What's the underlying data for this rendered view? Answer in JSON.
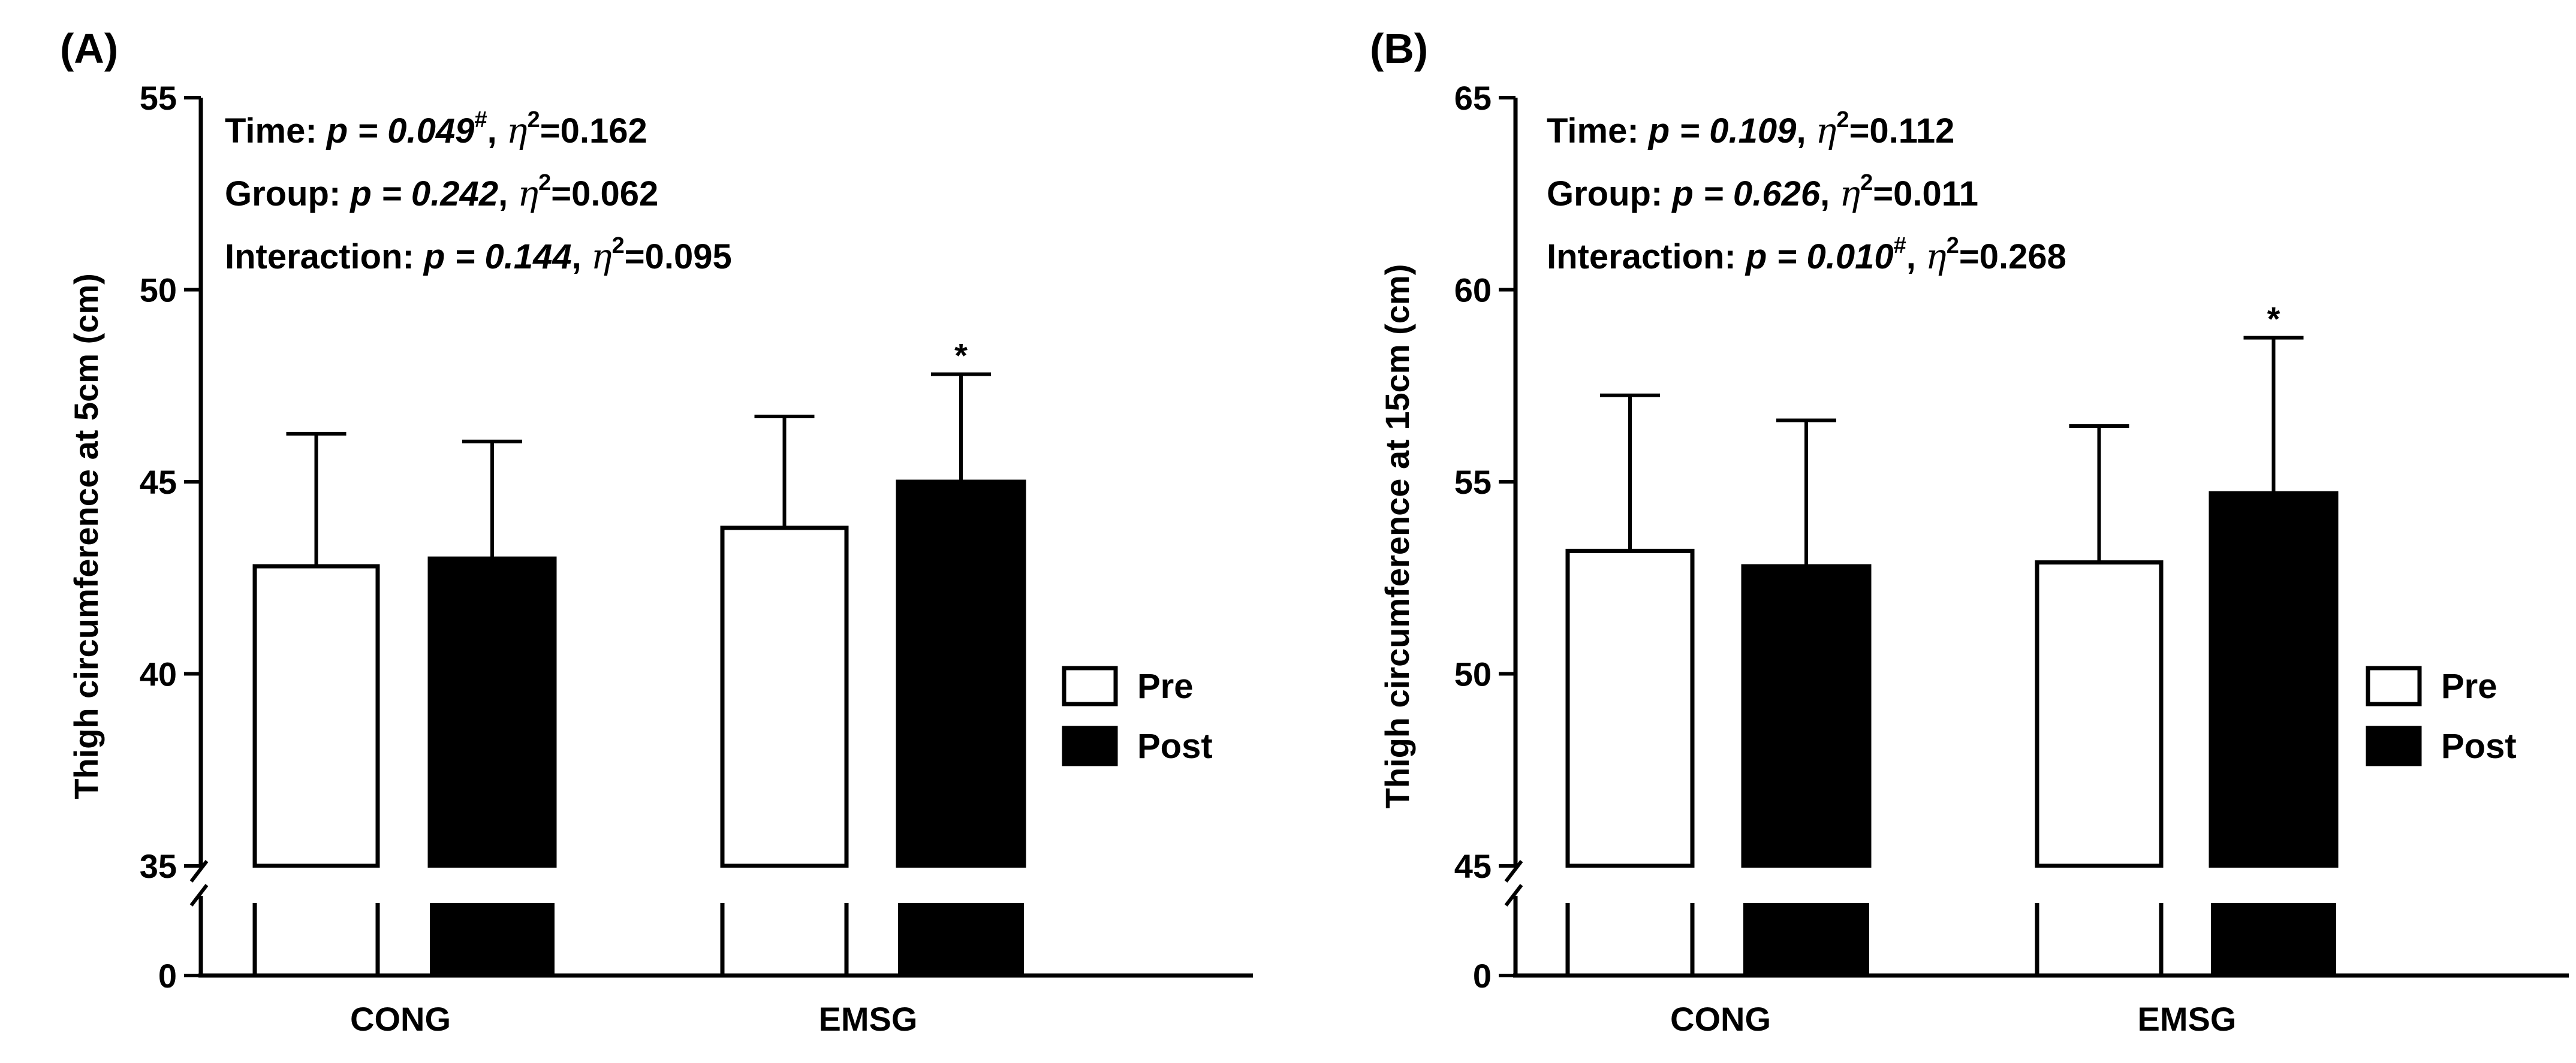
{
  "chart_data": [
    {
      "panel_label": "(A)",
      "type": "bar",
      "ylabel": "Thigh circumference at 5cm (cm)",
      "y_ticks": [
        0,
        35,
        40,
        45,
        50,
        55
      ],
      "ylim": [
        35,
        55
      ],
      "axis_break": "between 0 and 35",
      "categories": [
        "CONG",
        "EMSG"
      ],
      "series": [
        {
          "name": "Pre",
          "fill": "white",
          "values": [
            42.8,
            43.8
          ],
          "sd": [
            3.45,
            2.9
          ]
        },
        {
          "name": "Post",
          "fill": "black",
          "values": [
            43.0,
            45.0
          ],
          "sd": [
            3.05,
            2.8
          ]
        }
      ],
      "significance": [
        {
          "category": "EMSG",
          "series": "Post",
          "mark": "*"
        }
      ],
      "stats": [
        {
          "label": "Time: ",
          "p": "p = 0.049",
          "sup_hash": "#",
          "eta": "η",
          "eta_sup": "2",
          "eta_value": "=0.162"
        },
        {
          "label": "Group: ",
          "p": "p = 0.242",
          "sup_hash": "",
          "eta": "η",
          "eta_sup": "2",
          "eta_value": "=0.062"
        },
        {
          "label": "Interaction: ",
          "p": "p = 0.144",
          "sup_hash": "",
          "eta": "η",
          "eta_sup": "2",
          "eta_value": "=0.095"
        }
      ],
      "legend": [
        "Pre",
        "Post"
      ],
      "legend_position": "right"
    },
    {
      "panel_label": "(B)",
      "type": "bar",
      "ylabel": "Thigh circumference at 15cm (cm)",
      "y_ticks": [
        0,
        45,
        50,
        55,
        60,
        65
      ],
      "ylim": [
        45,
        65
      ],
      "axis_break": "between 0 and 45",
      "categories": [
        "CONG",
        "EMSG"
      ],
      "series": [
        {
          "name": "Pre",
          "fill": "white",
          "values": [
            53.2,
            52.9
          ],
          "sd": [
            4.05,
            3.55
          ]
        },
        {
          "name": "Post",
          "fill": "black",
          "values": [
            52.8,
            54.7
          ],
          "sd": [
            3.8,
            4.05
          ]
        }
      ],
      "significance": [
        {
          "category": "EMSG",
          "series": "Post",
          "mark": "*"
        }
      ],
      "stats": [
        {
          "label": "Time: ",
          "p": "p = 0.109",
          "sup_hash": "",
          "eta": "η",
          "eta_sup": "2",
          "eta_value": "=0.112"
        },
        {
          "label": "Group: ",
          "p": "p = 0.626",
          "sup_hash": "",
          "eta": "η",
          "eta_sup": "2",
          "eta_value": "=0.011"
        },
        {
          "label": "Interaction: ",
          "p": "p = 0.010",
          "sup_hash": "#",
          "eta": "η",
          "eta_sup": "2",
          "eta_value": "=0.268"
        }
      ],
      "legend": [
        "Pre",
        "Post"
      ],
      "legend_position": "right"
    }
  ]
}
